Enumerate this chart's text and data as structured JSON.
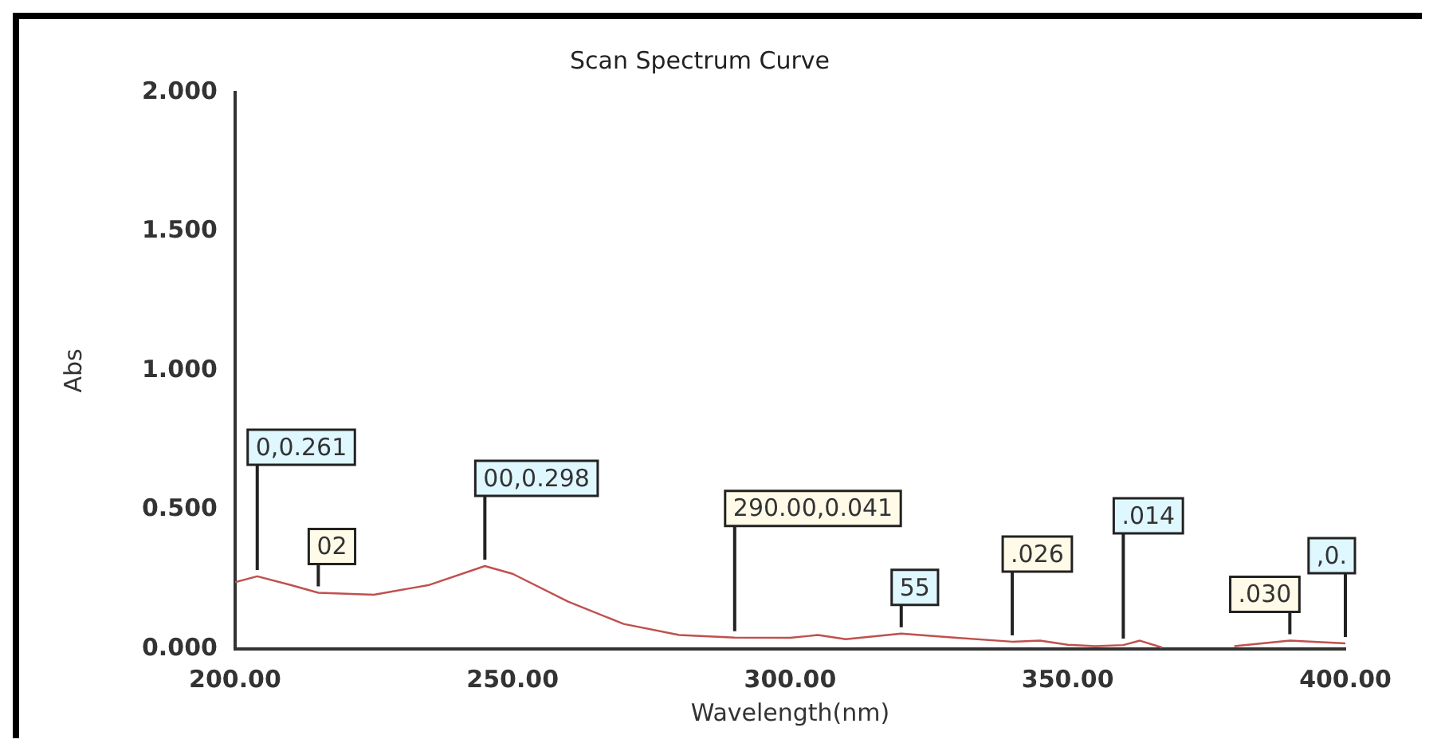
{
  "chart_data": {
    "type": "line",
    "title": "Scan Spectrum Curve",
    "xlabel": "Wavelength(nm)",
    "ylabel": "Abs",
    "x": [
      200,
      204,
      210,
      215,
      225,
      235,
      245,
      250,
      260,
      270,
      280,
      290,
      300,
      305,
      310,
      320,
      330,
      340,
      345,
      350,
      355,
      360,
      363,
      367,
      375,
      380,
      390,
      400
    ],
    "series": [
      {
        "color": "#c0504d",
        "values": [
          0.24,
          0.261,
          0.23,
          0.202,
          0.195,
          0.23,
          0.298,
          0.27,
          0.17,
          0.09,
          0.05,
          0.041,
          0.04,
          0.05,
          0.035,
          0.055,
          0.04,
          0.026,
          0.03,
          0.015,
          0.01,
          0.014,
          0.03,
          0.005,
          null,
          0.01,
          0.03,
          0.02
        ]
      }
    ],
    "xlim": [
      200,
      400
    ],
    "xticks": [
      {
        "value": 200,
        "label": "200.00"
      },
      {
        "value": 250,
        "label": "250.00"
      },
      {
        "value": 300,
        "label": "300.00"
      },
      {
        "value": 350,
        "label": "350.00"
      },
      {
        "value": 400,
        "label": "400.00"
      }
    ],
    "ylim": [
      0,
      2
    ],
    "yticks": [
      {
        "value": 0,
        "label": "0.000"
      },
      {
        "value": 0.5,
        "label": "0.500"
      },
      {
        "value": 1,
        "label": "1.000"
      },
      {
        "value": 1.5,
        "label": "1.500"
      },
      {
        "value": 2,
        "label": "2.000"
      }
    ],
    "grid": false,
    "legend": false,
    "marker": "none",
    "line_style": "solid",
    "annotations": [
      {
        "text": "0,0.261",
        "x": 204,
        "y": 0.261
      },
      {
        "text": "02",
        "x": 215,
        "y": 0.202
      },
      {
        "text": "00,0.298",
        "x": 245,
        "y": 0.298
      },
      {
        "text": "290.00,0.041",
        "x": 290,
        "y": 0.041
      },
      {
        "text": "55",
        "x": 320,
        "y": 0.055
      },
      {
        "text": ".026",
        "x": 340,
        "y": 0.026
      },
      {
        "text": ".014",
        "x": 360,
        "y": 0.014
      },
      {
        "text": ".030",
        "x": 390,
        "y": 0.03
      },
      {
        "text": ",0.",
        "x": 400,
        "y": 0.02
      }
    ]
  }
}
